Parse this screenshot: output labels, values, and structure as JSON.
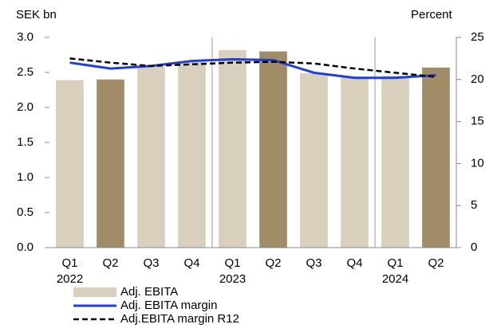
{
  "chart_data": {
    "type": "bar_line",
    "y_label": "SEK bn",
    "y2_label": "Percent",
    "categories": [
      "Q1",
      "Q2",
      "Q3",
      "Q4",
      "Q1",
      "Q2",
      "Q3",
      "Q4",
      "Q1",
      "Q2"
    ],
    "year_labels": [
      "2022",
      null,
      null,
      null,
      "2023",
      null,
      null,
      null,
      "2024",
      null
    ],
    "series": [
      {
        "name": "Adj. EBITA",
        "kind": "bar",
        "colors": [
          "#d9cfbd",
          "#a08c66",
          "#d9cfbd",
          "#d9cfbd",
          "#d9cfbd",
          "#a08c66",
          "#d9cfbd",
          "#d9cfbd",
          "#d9cfbd",
          "#a08c66"
        ],
        "values": [
          2.39,
          2.4,
          2.58,
          2.65,
          2.82,
          2.8,
          2.49,
          2.43,
          2.45,
          2.57
        ]
      },
      {
        "name": "Adj. EBITA margin",
        "kind": "line",
        "color": "#1f3fd6",
        "dash": false,
        "axis": "y2",
        "values": [
          22.0,
          21.3,
          21.6,
          22.2,
          22.4,
          22.3,
          20.8,
          20.2,
          20.2,
          20.5
        ]
      },
      {
        "name": "Adj.EBITA margin R12",
        "kind": "line",
        "color": "#000000",
        "dash": true,
        "axis": "y2",
        "values": [
          22.5,
          22.0,
          21.6,
          21.8,
          22.0,
          22.1,
          21.9,
          21.3,
          20.8,
          20.3
        ]
      }
    ],
    "ylim": [
      0,
      3
    ],
    "yticks": [
      {
        "value": 0,
        "label": "0.0"
      },
      {
        "value": 0.5,
        "label": "0.5"
      },
      {
        "value": 1,
        "label": "1.0"
      },
      {
        "value": 1.5,
        "label": "1.5"
      },
      {
        "value": 2,
        "label": "2.0"
      },
      {
        "value": 2.5,
        "label": "2.5"
      },
      {
        "value": 3,
        "label": "3.0"
      }
    ],
    "y2lim": [
      0,
      25
    ],
    "y2ticks": [
      0,
      5,
      10,
      15,
      20,
      25
    ]
  }
}
